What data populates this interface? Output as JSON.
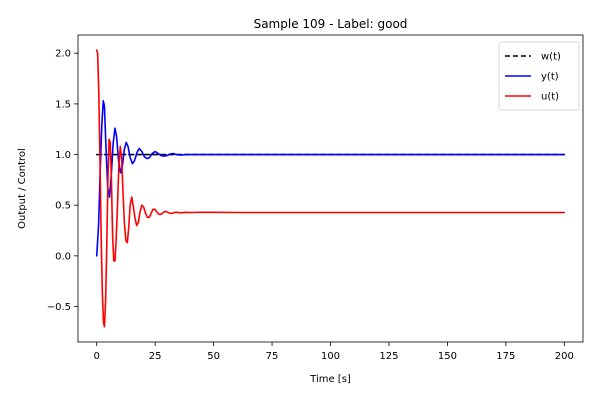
{
  "chart_data": {
    "type": "line",
    "title": "Sample 109 - Label: good",
    "xlabel": "Time [s]",
    "ylabel": "Output / Control",
    "xlim": [
      -8,
      208
    ],
    "ylim": [
      -0.85,
      2.18
    ],
    "xticks": [
      0,
      25,
      50,
      75,
      100,
      125,
      150,
      175,
      200
    ],
    "yticks": [
      -0.5,
      0.0,
      0.5,
      1.0,
      1.5,
      2.0
    ],
    "xtick_labels": [
      "0",
      "25",
      "50",
      "75",
      "100",
      "125",
      "150",
      "175",
      "200"
    ],
    "ytick_labels": [
      "−0.5",
      "0.0",
      "0.5",
      "1.0",
      "1.5",
      "2.0"
    ],
    "grid": false,
    "legend_position": "top-right",
    "series": [
      {
        "name": "w(t)",
        "color": "#000000",
        "style": "dashed",
        "x": [
          0,
          200
        ],
        "y": [
          1.0,
          1.0
        ]
      },
      {
        "name": "y(t)",
        "color": "#0000ff",
        "style": "solid",
        "x": [
          0,
          0.8,
          1.5,
          2.2,
          2.8,
          3.3,
          4.0,
          4.7,
          5.5,
          6.3,
          7.0,
          7.8,
          8.5,
          9.3,
          10.2,
          11.0,
          11.8,
          12.6,
          13.4,
          14.3,
          15.3,
          16.2,
          17.2,
          18.2,
          19.3,
          20.4,
          21.5,
          22.6,
          23.7,
          25.0,
          26.3,
          27.5,
          28.8,
          30.1,
          31.4,
          32.7,
          34.0,
          36.0,
          38.0,
          40.0,
          45.0,
          50.0,
          75.0,
          100.0,
          125.0,
          150.0,
          175.0,
          200.0
        ],
        "y": [
          0.0,
          0.3,
          0.85,
          1.3,
          1.53,
          1.48,
          1.05,
          0.68,
          0.58,
          0.82,
          1.1,
          1.26,
          1.18,
          0.95,
          0.82,
          0.89,
          1.05,
          1.12,
          1.08,
          0.97,
          0.91,
          0.94,
          1.02,
          1.06,
          1.03,
          0.98,
          0.96,
          0.97,
          1.01,
          1.03,
          1.01,
          0.99,
          0.985,
          0.99,
          1.005,
          1.01,
          1.0,
          0.995,
          1.0,
          1.0,
          1.0,
          1.0,
          1.0,
          1.0,
          1.0,
          1.0,
          1.0,
          1.0
        ]
      },
      {
        "name": "u(t)",
        "color": "#ff0000",
        "style": "solid",
        "x": [
          0,
          0.4,
          0.9,
          1.4,
          1.9,
          2.4,
          2.9,
          3.3,
          3.8,
          4.3,
          4.8,
          5.3,
          5.8,
          6.3,
          6.8,
          7.3,
          7.8,
          8.3,
          8.9,
          9.5,
          10.1,
          10.7,
          11.3,
          11.9,
          12.5,
          13.1,
          13.7,
          14.3,
          15.0,
          15.7,
          16.4,
          17.1,
          17.8,
          18.5,
          19.3,
          20.1,
          20.9,
          21.7,
          22.5,
          23.3,
          24.1,
          24.9,
          25.8,
          26.7,
          27.6,
          28.5,
          29.4,
          30.4,
          31.4,
          32.4,
          33.4,
          34.4,
          36.0,
          38.0,
          40.0,
          45.0,
          50.0,
          60.0,
          75.0,
          100.0,
          125.0,
          150.0,
          175.0,
          200.0
        ],
        "y": [
          2.03,
          2.0,
          1.6,
          0.95,
          0.2,
          -0.35,
          -0.65,
          -0.7,
          -0.45,
          0.1,
          0.75,
          1.15,
          1.12,
          0.75,
          0.2,
          -0.05,
          -0.05,
          0.15,
          0.5,
          0.9,
          1.08,
          0.95,
          0.6,
          0.3,
          0.15,
          0.13,
          0.28,
          0.5,
          0.58,
          0.48,
          0.37,
          0.3,
          0.33,
          0.43,
          0.5,
          0.48,
          0.42,
          0.38,
          0.38,
          0.42,
          0.46,
          0.46,
          0.43,
          0.41,
          0.41,
          0.43,
          0.44,
          0.43,
          0.42,
          0.42,
          0.43,
          0.43,
          0.425,
          0.43,
          0.428,
          0.43,
          0.43,
          0.428,
          0.428,
          0.428,
          0.428,
          0.428,
          0.428,
          0.428
        ]
      }
    ]
  }
}
